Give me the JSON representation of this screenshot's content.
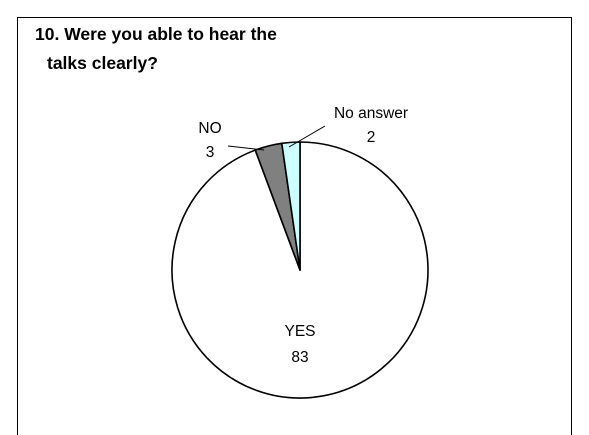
{
  "title": {
    "line1": "10. Were you able to hear the",
    "line2": "talks clearly?"
  },
  "chart_data": {
    "type": "pie",
    "title": "10. Were you able to hear the talks clearly?",
    "slices": [
      {
        "name": "YES",
        "value": 83,
        "color": "#ffffff"
      },
      {
        "name": "NO",
        "value": 3,
        "color": "#808080"
      },
      {
        "name": "No answer",
        "value": 2,
        "color": "#ccffff"
      }
    ],
    "legend": "none",
    "labels": "category and value shown next to each slice"
  }
}
